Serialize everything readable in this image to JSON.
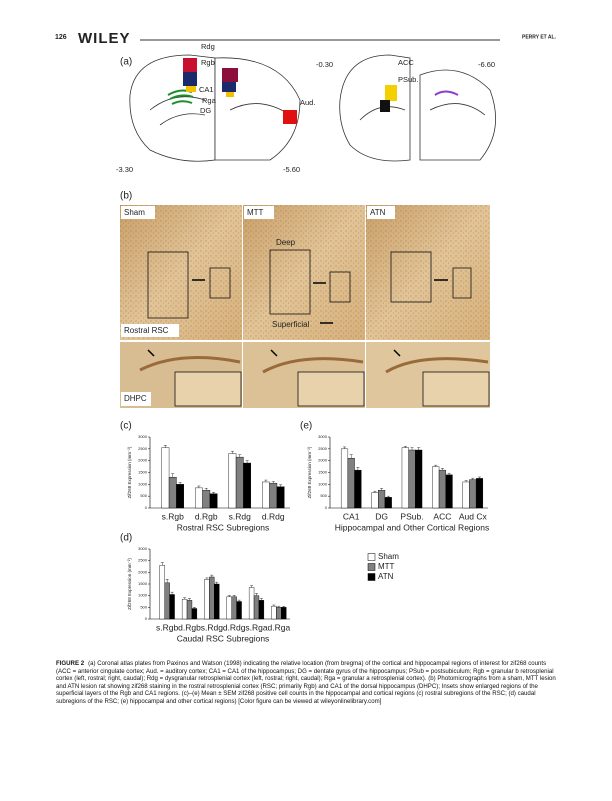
{
  "header": {
    "page_number": "126",
    "publisher": "WILEY",
    "running_head": "PERRY ET AL."
  },
  "panel_a": {
    "label": "(a)",
    "regions": [
      "Rdg",
      "Rgb",
      "CA1",
      "Rga",
      "DG",
      "ACC",
      "PSub.",
      "Aud."
    ],
    "coordinates": [
      "-3.30",
      "-5.60",
      "-0.30",
      "-6.60"
    ]
  },
  "panel_b": {
    "label": "(b)",
    "groups": [
      "Sham",
      "MTT",
      "ATN"
    ],
    "rows": [
      "Rostral RSC",
      "DHPC"
    ],
    "layers": [
      "Deep",
      "Superficial"
    ]
  },
  "chart_data": [
    {
      "type": "bar",
      "panel_label": "(c)",
      "y_label": "Zif268 Expression (mm⁻²)",
      "x_label": "Rostral RSC Subregions",
      "categories": [
        "s.Rgb",
        "d.Rgb",
        "s.Rdg",
        "d.Rdg"
      ],
      "ylim": [
        0,
        3000
      ],
      "yticks": [
        0,
        500,
        1000,
        1500,
        2000,
        2500,
        3000
      ],
      "legend": false,
      "series": [
        {
          "name": "Sham",
          "color": "#ffffff",
          "values": [
            2550,
            850,
            2300,
            1100
          ],
          "errors": [
            100,
            80,
            100,
            80
          ]
        },
        {
          "name": "MTT",
          "color": "#808080",
          "values": [
            1300,
            750,
            2150,
            1050
          ],
          "errors": [
            150,
            80,
            100,
            70
          ]
        },
        {
          "name": "ATN",
          "color": "#000000",
          "values": [
            1000,
            600,
            1900,
            900
          ],
          "errors": [
            80,
            60,
            100,
            80
          ]
        }
      ]
    },
    {
      "type": "bar",
      "panel_label": "(e)",
      "y_label": "Zif268 Expression (mm⁻²)",
      "x_label": "Hippocampal and Other Cortical Regions",
      "categories": [
        "CA1",
        "DG",
        "PSub.",
        "ACC",
        "Aud Cx"
      ],
      "ylim": [
        0,
        3000
      ],
      "yticks": [
        0,
        500,
        1000,
        1500,
        2000,
        2500,
        3000
      ],
      "legend": false,
      "series": [
        {
          "name": "Sham",
          "color": "#ffffff",
          "values": [
            2500,
            650,
            2550,
            1750,
            1100
          ],
          "errors": [
            80,
            60,
            60,
            60,
            60
          ]
        },
        {
          "name": "MTT",
          "color": "#808080",
          "values": [
            2100,
            750,
            2450,
            1600,
            1200
          ],
          "errors": [
            150,
            80,
            100,
            80,
            60
          ]
        },
        {
          "name": "ATN",
          "color": "#000000",
          "values": [
            1600,
            450,
            2450,
            1400,
            1250
          ],
          "errors": [
            120,
            50,
            100,
            70,
            60
          ]
        }
      ]
    },
    {
      "type": "bar",
      "panel_label": "(d)",
      "y_label": "Zif268 Expression (mm⁻²)",
      "x_label": "Caudal RSC Subregions",
      "categories": [
        "s.Rgb",
        "d.Rgb",
        "s.Rdg",
        "d.Rdg",
        "s.Rga",
        "d.Rga"
      ],
      "ylim": [
        0,
        3000
      ],
      "yticks": [
        0,
        500,
        1000,
        1500,
        2000,
        2500,
        3000
      ],
      "legend": true,
      "series": [
        {
          "name": "Sham",
          "color": "#ffffff",
          "values": [
            2300,
            850,
            1700,
            950,
            1350,
            550
          ],
          "errors": [
            120,
            60,
            60,
            60,
            80,
            50
          ]
        },
        {
          "name": "MTT",
          "color": "#808080",
          "values": [
            1550,
            800,
            1800,
            950,
            1000,
            500
          ],
          "errors": [
            150,
            80,
            80,
            60,
            100,
            50
          ]
        },
        {
          "name": "ATN",
          "color": "#000000",
          "values": [
            1050,
            450,
            1500,
            750,
            800,
            500
          ],
          "errors": [
            100,
            50,
            80,
            60,
            80,
            40
          ]
        }
      ]
    }
  ],
  "caption": {
    "label": "FIGURE 2",
    "text": "(a) Coronal atlas plates from Paxinos and Watson (1998) indicating the relative location (from bregma) of the cortical and hippocampal regions of interest for zif268 counts (ACC = anterior cingulate cortex; Aud. = auditory cortex; CA1 = CA1 of the hippocampus; DG = dentate gyrus of the hippocampus; PSub = postsubiculum; Rgb = granular b retrosplenial cortex (left, rostral; right, caudal); Rdg = dysgranular retrosplenial cortex (left, rostral; right, caudal); Rga = granular a retrosplenial cortex). (b) Photomicrographs from a sham, MTT lesion and ATN lesion rat showing zif268 staining in the rostral retrosplenial cortex (RSC; primarily Rgb) and CA1 of the dorsal hippocampus (DHPC); Insets show enlarged regions of the superficial layers of the Rgb and CA1 regions. (c)–(e) Mean ± SEM zif268 positive cell counts in the hippocampal and cortical regions (c) rostral subregions of the RSC; (d) caudal subregions of the RSC; (e) hippocampal and other cortical regions) [Color figure can be viewed at wileyonlinelibrary.com]"
  }
}
